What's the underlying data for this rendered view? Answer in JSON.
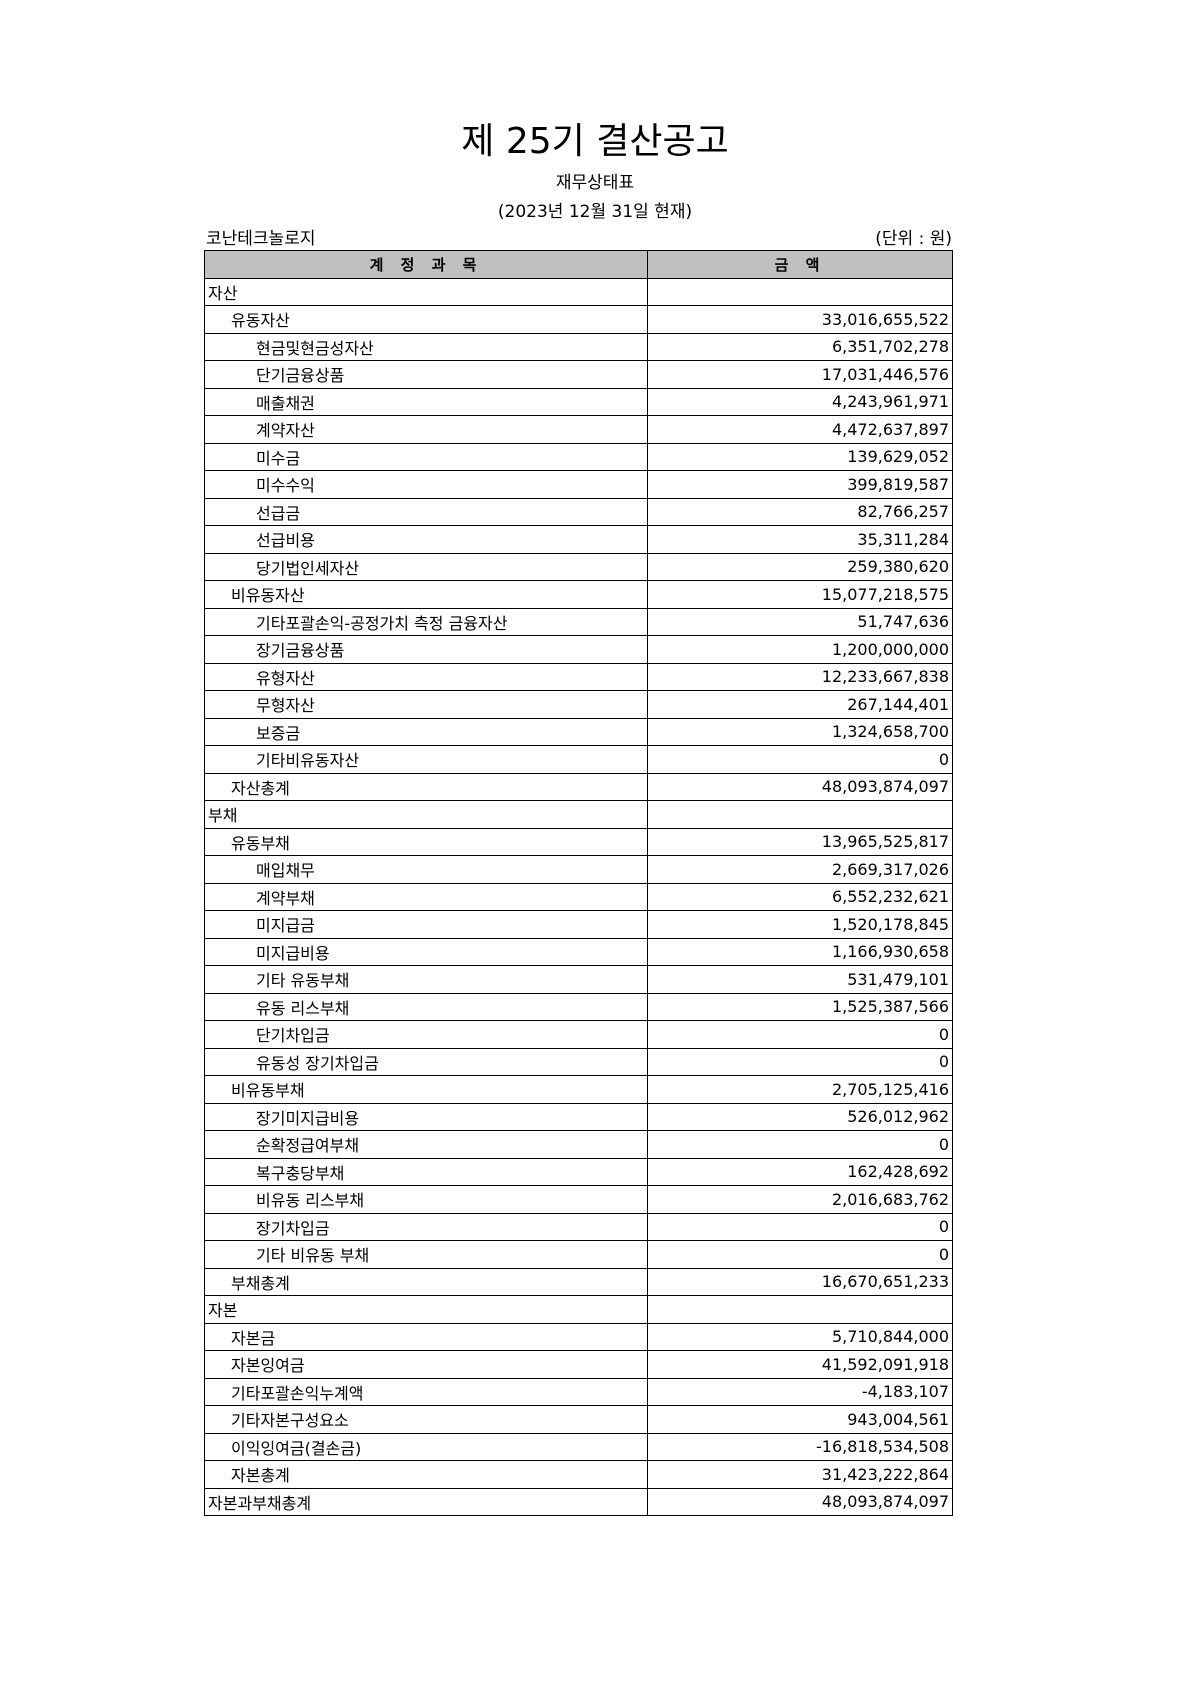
{
  "header": {
    "title": "제 25기 결산공고",
    "subtitle": "재무상태표",
    "date": "(2023년 12월 31일 현재)",
    "company": "코난테크놀로지",
    "unit": "(단위 : 원)"
  },
  "table": {
    "columns": [
      "계 정 과 목",
      "금  액"
    ],
    "header_bg": "#c0c0c0",
    "rows": [
      {
        "name": "자산",
        "level": 0,
        "amount": ""
      },
      {
        "name": "유동자산",
        "level": 1,
        "amount": "33,016,655,522"
      },
      {
        "name": "현금및현금성자산",
        "level": 2,
        "amount": "6,351,702,278"
      },
      {
        "name": "단기금융상품",
        "level": 2,
        "amount": "17,031,446,576"
      },
      {
        "name": "매출채권",
        "level": 2,
        "amount": "4,243,961,971"
      },
      {
        "name": "계약자산",
        "level": 2,
        "amount": "4,472,637,897"
      },
      {
        "name": "미수금",
        "level": 2,
        "amount": "139,629,052"
      },
      {
        "name": "미수수익",
        "level": 2,
        "amount": "399,819,587"
      },
      {
        "name": "선급금",
        "level": 2,
        "amount": "82,766,257"
      },
      {
        "name": "선급비용",
        "level": 2,
        "amount": "35,311,284"
      },
      {
        "name": "당기법인세자산",
        "level": 2,
        "amount": "259,380,620"
      },
      {
        "name": "비유동자산",
        "level": 1,
        "amount": "15,077,218,575"
      },
      {
        "name": "기타포괄손익-공정가치 측정 금융자산",
        "level": 2,
        "amount": "51,747,636"
      },
      {
        "name": "장기금융상품",
        "level": 2,
        "amount": "1,200,000,000"
      },
      {
        "name": "유형자산",
        "level": 2,
        "amount": "12,233,667,838"
      },
      {
        "name": "무형자산",
        "level": 2,
        "amount": "267,144,401"
      },
      {
        "name": "보증금",
        "level": 2,
        "amount": "1,324,658,700"
      },
      {
        "name": "기타비유동자산",
        "level": 2,
        "amount": "0"
      },
      {
        "name": "자산총계",
        "level": 1,
        "amount": "48,093,874,097"
      },
      {
        "name": "부채",
        "level": 0,
        "amount": ""
      },
      {
        "name": "유동부채",
        "level": 1,
        "amount": "13,965,525,817"
      },
      {
        "name": "매입채무",
        "level": 2,
        "amount": "2,669,317,026"
      },
      {
        "name": "계약부채",
        "level": 2,
        "amount": "6,552,232,621"
      },
      {
        "name": "미지급금",
        "level": 2,
        "amount": "1,520,178,845"
      },
      {
        "name": "미지급비용",
        "level": 2,
        "amount": "1,166,930,658"
      },
      {
        "name": "기타 유동부채",
        "level": 2,
        "amount": "531,479,101"
      },
      {
        "name": "유동 리스부채",
        "level": 2,
        "amount": "1,525,387,566"
      },
      {
        "name": "단기차입금",
        "level": 2,
        "amount": "0"
      },
      {
        "name": "유동성 장기차입금",
        "level": 2,
        "amount": "0"
      },
      {
        "name": "비유동부채",
        "level": 1,
        "amount": "2,705,125,416"
      },
      {
        "name": "장기미지급비용",
        "level": 2,
        "amount": "526,012,962"
      },
      {
        "name": "순확정급여부채",
        "level": 2,
        "amount": "0"
      },
      {
        "name": "복구충당부채",
        "level": 2,
        "amount": "162,428,692"
      },
      {
        "name": "비유동 리스부채",
        "level": 2,
        "amount": "2,016,683,762"
      },
      {
        "name": "장기차입금",
        "level": 2,
        "amount": "0"
      },
      {
        "name": "기타 비유동 부채",
        "level": 2,
        "amount": "0"
      },
      {
        "name": "부채총계",
        "level": 1,
        "amount": "16,670,651,233"
      },
      {
        "name": "자본",
        "level": 0,
        "amount": ""
      },
      {
        "name": "자본금",
        "level": 1,
        "amount": "5,710,844,000"
      },
      {
        "name": "자본잉여금",
        "level": 1,
        "amount": "41,592,091,918"
      },
      {
        "name": "기타포괄손익누계액",
        "level": 1,
        "amount": "-4,183,107"
      },
      {
        "name": "기타자본구성요소",
        "level": 1,
        "amount": "943,004,561"
      },
      {
        "name": "이익잉여금(결손금)",
        "level": 1,
        "amount": "-16,818,534,508"
      },
      {
        "name": "자본총계",
        "level": 1,
        "amount": "31,423,222,864"
      },
      {
        "name": "자본과부채총계",
        "level": 0,
        "amount": "48,093,874,097"
      }
    ]
  }
}
